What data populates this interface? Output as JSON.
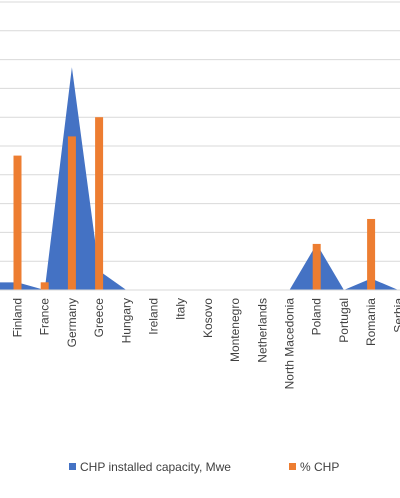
{
  "chart_data": {
    "type": "area",
    "categories": [
      "Finland",
      "France",
      "Germany",
      "Greece",
      "Hungary",
      "Ireland",
      "Italy",
      "Kosovo",
      "Montenegro",
      "Netherlands",
      "North Macedonia",
      "Poland",
      "Portugal",
      "Romania",
      "Serbia"
    ],
    "series": [
      {
        "name": "CHP installed capacity, Mwe",
        "type": "area",
        "color": "#4472C4",
        "values": [
          0.2,
          0.0,
          5.8,
          0.5,
          0.0,
          0.0,
          0.0,
          0.0,
          0.0,
          0.0,
          0.0,
          1.2,
          0.0,
          0.3,
          0.0
        ]
      },
      {
        "name": "% CHP",
        "type": "bar",
        "color": "#ED7D31",
        "values": [
          3.5,
          0.2,
          4.0,
          4.5,
          0.0,
          0.0,
          0.0,
          0.0,
          0.0,
          0.0,
          0.0,
          1.2,
          0.0,
          1.85,
          0.0
        ]
      }
    ],
    "ylim": [
      0,
      7.5
    ],
    "gridlines": true,
    "legend_position": "bottom"
  },
  "legend": {
    "items": [
      {
        "label": "CHP installed capacity, Mwe",
        "color": "#4472C4"
      },
      {
        "label": "% CHP",
        "color": "#ED7D31"
      }
    ]
  }
}
